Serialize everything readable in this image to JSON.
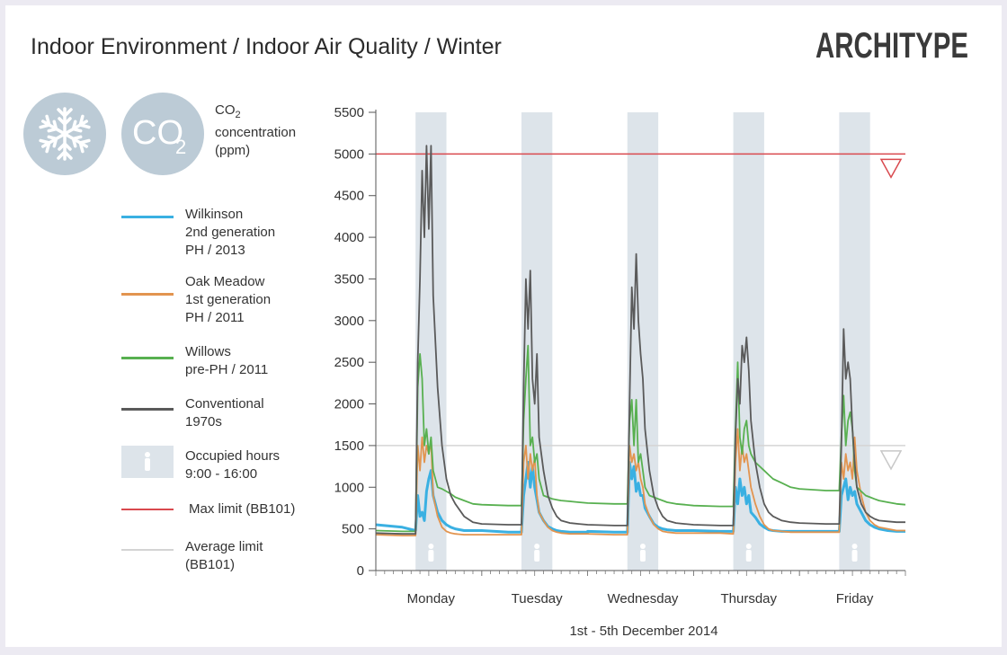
{
  "header": {
    "title": "Indoor Environment / Indoor Air Quality / Winter"
  },
  "logo": {
    "text": "ARCHITYPE"
  },
  "badges": {
    "snow_icon": "snowflake-icon",
    "co2_main": "CO",
    "co2_sub": "2"
  },
  "legend": {
    "metric_line1": "CO",
    "metric_sub": "2",
    "metric_line2": "concentration",
    "metric_line3": "(ppm)",
    "items": [
      {
        "label": "Wilkinson\n2nd generation\nPH / 2013",
        "color": "#3ab0e2"
      },
      {
        "label": "Oak Meadow\n1st generation\nPH / 2011",
        "color": "#e2944f"
      },
      {
        "label": "Willows\npre-PH / 2011",
        "color": "#58b050"
      },
      {
        "label": "Conventional\n1970s",
        "color": "#5a5a5a"
      },
      {
        "label": "Occupied hours\n9:00 - 16:00",
        "color": "#dde4ea"
      },
      {
        "label": "Max limit (BB101)",
        "color": "#d9494e"
      },
      {
        "label": "Average limit\n(BB101)",
        "color": "#d4d4d4"
      }
    ]
  },
  "chart_data": {
    "type": "line",
    "xlabel": "1st - 5th December 2014",
    "ylabel": "",
    "ylim": [
      0,
      5500
    ],
    "yticks": [
      0,
      500,
      1000,
      1500,
      2000,
      2500,
      3000,
      3500,
      4000,
      4500,
      5000,
      5500
    ],
    "days": [
      "Monday",
      "Tuesday",
      "Wednesday",
      "Thursday",
      "Friday"
    ],
    "x_hours": [
      0,
      6,
      9,
      9.5,
      10,
      10.5,
      11,
      11.5,
      12,
      12.5,
      13,
      14,
      15,
      16,
      17,
      18,
      20,
      22,
      24
    ],
    "occupied_hours": [
      9,
      16
    ],
    "max_limit": 5000,
    "average_limit": 1500,
    "series": [
      {
        "name": "Wilkinson 2nd generation PH / 2013",
        "color": "#3ab0e2",
        "days": [
          [
            550,
            520,
            480,
            900,
            650,
            700,
            600,
            950,
            1100,
            1200,
            900,
            700,
            600,
            550,
            520,
            500,
            480,
            480,
            480
          ],
          [
            480,
            460,
            460,
            900,
            1100,
            1300,
            1000,
            1250,
            1000,
            850,
            700,
            600,
            530,
            500,
            480,
            470,
            460,
            460,
            460
          ],
          [
            470,
            460,
            460,
            1300,
            1100,
            1250,
            950,
            1050,
            900,
            900,
            750,
            650,
            560,
            520,
            500,
            490,
            480,
            480,
            480
          ],
          [
            480,
            470,
            470,
            1000,
            800,
            1100,
            900,
            1000,
            800,
            900,
            700,
            640,
            560,
            520,
            490,
            480,
            470,
            470,
            470
          ],
          [
            470,
            470,
            470,
            900,
            1000,
            1100,
            850,
            1000,
            900,
            950,
            800,
            700,
            600,
            550,
            520,
            500,
            480,
            470,
            470
          ]
        ]
      },
      {
        "name": "Oak Meadow 1st generation PH / 2011",
        "color": "#e2944f",
        "days": [
          [
            430,
            420,
            420,
            1500,
            1200,
            1600,
            1300,
            1500,
            1400,
            1550,
            900,
            650,
            520,
            470,
            450,
            440,
            430,
            430,
            430
          ],
          [
            430,
            430,
            430,
            1300,
            1500,
            1100,
            1400,
            1200,
            1350,
            900,
            700,
            600,
            520,
            480,
            460,
            450,
            440,
            440,
            440
          ],
          [
            440,
            430,
            430,
            1500,
            1300,
            1400,
            1200,
            1300,
            1100,
            1000,
            800,
            650,
            550,
            500,
            470,
            460,
            450,
            450,
            450
          ],
          [
            450,
            450,
            440,
            1300,
            1700,
            1200,
            1500,
            1300,
            1400,
            1200,
            1000,
            800,
            650,
            550,
            500,
            480,
            470,
            460,
            460
          ],
          [
            460,
            460,
            460,
            1300,
            1100,
            1400,
            1200,
            1300,
            1100,
            1600,
            1200,
            900,
            700,
            600,
            550,
            520,
            500,
            480,
            480
          ]
        ]
      },
      {
        "name": "Willows pre-PH / 2011",
        "color": "#58b050",
        "days": [
          [
            480,
            470,
            470,
            2200,
            2600,
            2300,
            1500,
            1700,
            1400,
            1600,
            1200,
            1000,
            980,
            950,
            920,
            880,
            840,
            800,
            790
          ],
          [
            790,
            780,
            780,
            1800,
            2300,
            2700,
            1500,
            1600,
            1300,
            1400,
            1100,
            900,
            880,
            860,
            850,
            840,
            830,
            820,
            810
          ],
          [
            810,
            800,
            800,
            1800,
            2050,
            1500,
            2050,
            1300,
            1400,
            1200,
            1000,
            900,
            880,
            860,
            840,
            820,
            800,
            790,
            780
          ],
          [
            780,
            770,
            770,
            1700,
            2500,
            1600,
            1400,
            1700,
            1800,
            1500,
            1400,
            1300,
            1250,
            1200,
            1150,
            1100,
            1050,
            1000,
            980
          ],
          [
            980,
            960,
            960,
            1600,
            2100,
            1500,
            1800,
            1900,
            1700,
            1200,
            1000,
            950,
            900,
            880,
            860,
            840,
            820,
            800,
            790
          ]
        ]
      },
      {
        "name": "Conventional 1970s",
        "color": "#5a5a5a",
        "days": [
          [
            450,
            440,
            440,
            2500,
            3500,
            4800,
            4000,
            5100,
            4100,
            5100,
            3300,
            2200,
            1500,
            1100,
            900,
            800,
            650,
            580,
            560
          ],
          [
            560,
            550,
            550,
            2200,
            3500,
            2900,
            3600,
            2300,
            2000,
            2600,
            1600,
            1200,
            900,
            750,
            650,
            600,
            570,
            560,
            550
          ],
          [
            550,
            540,
            540,
            2000,
            3400,
            2900,
            3800,
            3000,
            2600,
            2300,
            1700,
            1200,
            900,
            750,
            650,
            600,
            570,
            560,
            550
          ],
          [
            550,
            540,
            540,
            1600,
            2300,
            2000,
            2700,
            2500,
            2800,
            2400,
            1800,
            1300,
            1000,
            800,
            700,
            650,
            600,
            580,
            570
          ],
          [
            570,
            560,
            560,
            1500,
            2900,
            2300,
            2500,
            2300,
            1700,
            1300,
            1000,
            800,
            700,
            650,
            620,
            600,
            590,
            580,
            580
          ]
        ]
      }
    ]
  }
}
